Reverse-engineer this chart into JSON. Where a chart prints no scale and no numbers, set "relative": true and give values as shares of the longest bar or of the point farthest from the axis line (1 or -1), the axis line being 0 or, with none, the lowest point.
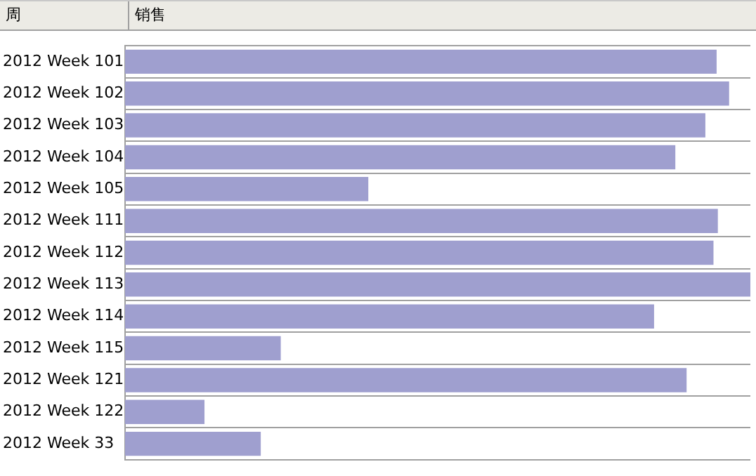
{
  "chart_data": {
    "type": "bar",
    "orientation": "horizontal",
    "relative": true,
    "ylabel": "周",
    "xlabel": "销售",
    "grid": "y",
    "categories": [
      "2012 Week 101",
      "2012 Week 102",
      "2012 Week 103",
      "2012 Week 104",
      "2012 Week 105",
      "2012 Week 111",
      "2012 Week 112",
      "2012 Week 113",
      "2012 Week 114",
      "2012 Week 115",
      "2012 Week 121",
      "2012 Week 122",
      "2012 Week 33"
    ],
    "values": [
      0.946,
      0.966,
      0.928,
      0.88,
      0.389,
      0.948,
      0.941,
      1,
      0.846,
      0.249,
      0.898,
      0.127,
      0.217
    ],
    "color": "#9f9fcf"
  }
}
